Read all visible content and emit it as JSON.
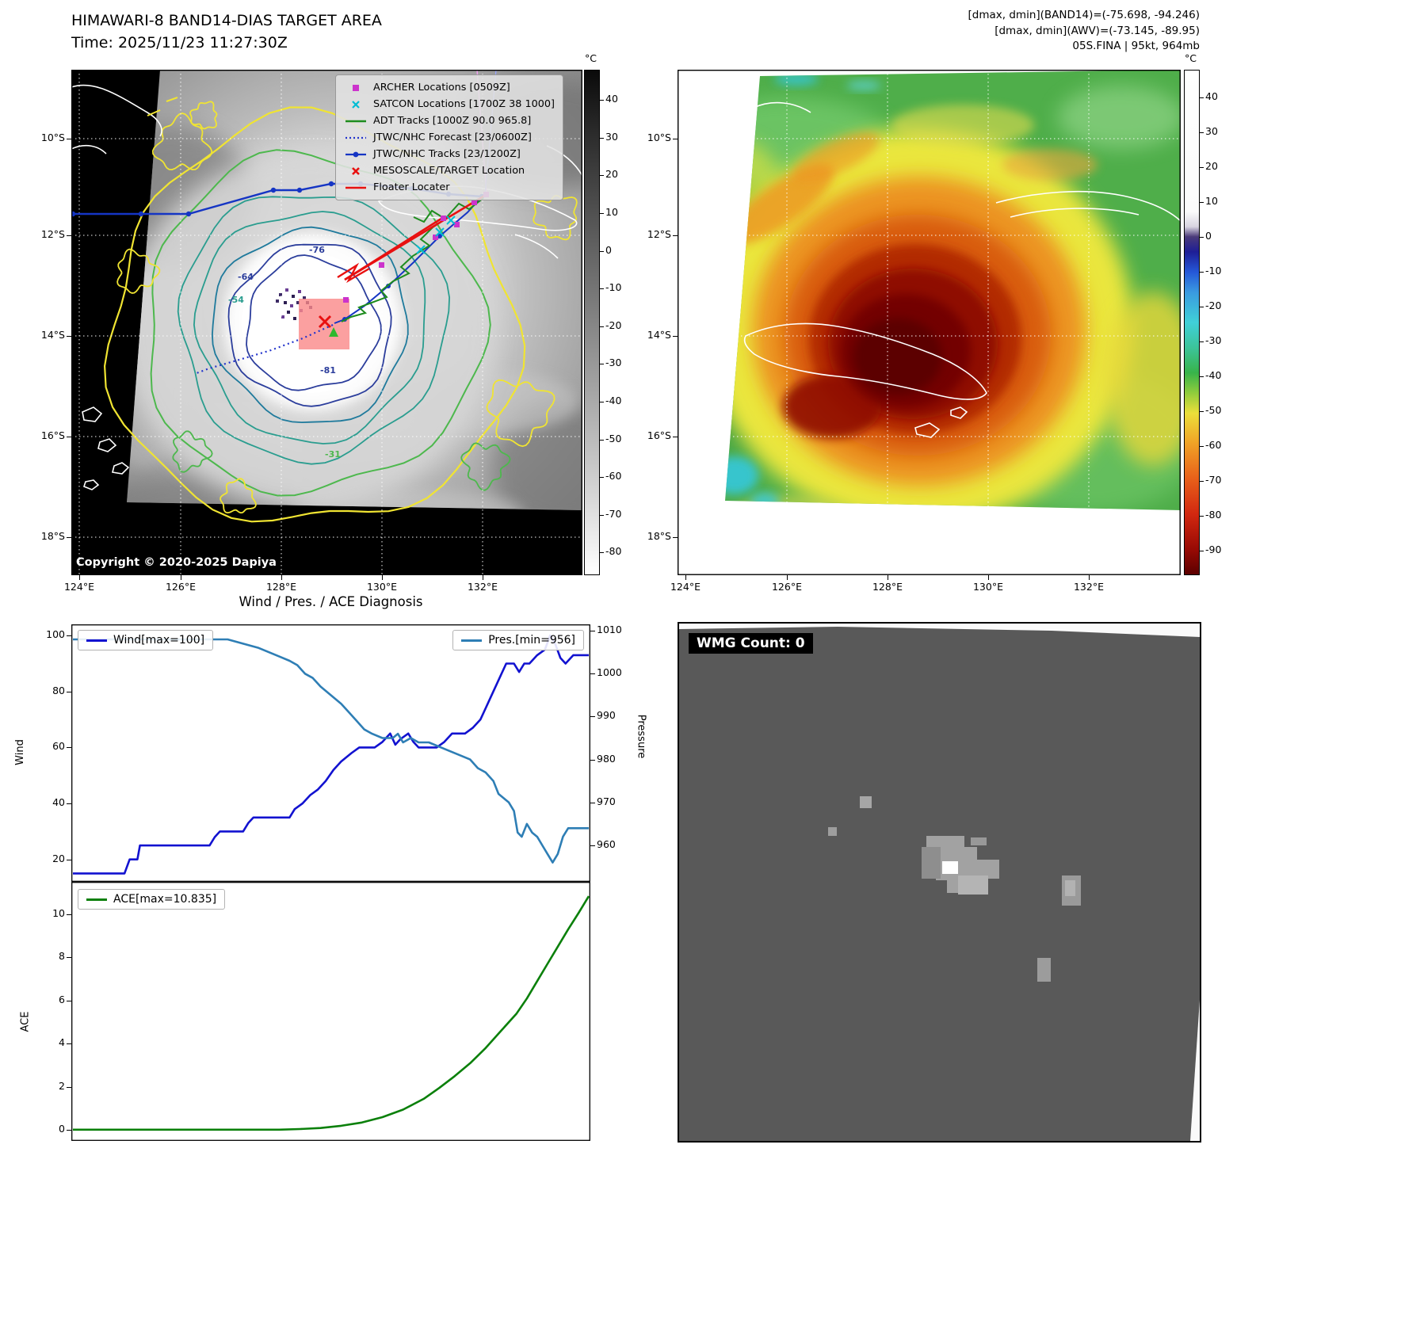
{
  "panel_band14": {
    "title": "HIMAWARI-8 BAND14-DIAS TARGET AREA",
    "subtitle": "Time: 2025/11/23 11:27:30Z",
    "copyright": "Copyright © 2020-2025 Dapiya",
    "legend": {
      "items": [
        {
          "label": "ARCHER Locations [0509Z]",
          "marker": "magenta-square"
        },
        {
          "label": "SATCON Locations [1700Z 38 1000]",
          "marker": "cyan-x"
        },
        {
          "label": "ADT Tracks [1000Z 90.0 965.8]",
          "marker": "green-line"
        },
        {
          "label": "JTWC/NHC Forecast [23/0600Z]",
          "marker": "blue-dotted"
        },
        {
          "label": "JTWC/NHC Tracks [23/1200Z]",
          "marker": "blue-line-dot"
        },
        {
          "label": "MESOSCALE/TARGET Location",
          "marker": "red-x"
        },
        {
          "label": "Floater Locater",
          "marker": "red-line"
        }
      ]
    },
    "colorbar": {
      "unit": "°C",
      "ticks": [
        40,
        30,
        20,
        10,
        0,
        -10,
        -20,
        -30,
        -40,
        -50,
        -60,
        -70,
        -80
      ]
    },
    "lat_labels": [
      "10°S",
      "12°S",
      "14°S",
      "16°S",
      "18°S"
    ],
    "lon_labels": [
      "124°E",
      "126°E",
      "128°E",
      "130°E",
      "132°E"
    ],
    "contour_labels": [
      "-76",
      "-64",
      "-54",
      "-81",
      "-31"
    ]
  },
  "panel_awv": {
    "header_lines": [
      "[dmax, dmin](BAND14)=(-75.698, -94.246)",
      "[dmax, dmin](AWV)=(-73.145, -89.95)",
      "05S.FINA | 95kt, 964mb"
    ],
    "colorbar": {
      "unit": "°C",
      "ticks": [
        40,
        30,
        20,
        10,
        0,
        -10,
        -20,
        -30,
        -40,
        -50,
        -60,
        -70,
        -80,
        -90
      ]
    },
    "lat_labels": [
      "10°S",
      "12°S",
      "14°S",
      "16°S",
      "18°S"
    ],
    "lon_labels": [
      "124°E",
      "126°E",
      "128°E",
      "130°E",
      "132°E"
    ]
  },
  "diagnosis": {
    "title": "Wind / Pres. / ACE Diagnosis"
  },
  "wmg": {
    "label": "WMG Count: 0"
  },
  "chart_data": [
    {
      "type": "line",
      "title": "Wind / Pres. / ACE Diagnosis",
      "y_left": {
        "label": "Wind",
        "ticks": [
          20,
          40,
          60,
          80,
          100
        ],
        "range": [
          12,
          104
        ]
      },
      "y_right": {
        "label": "Pressure",
        "ticks": [
          960,
          970,
          980,
          990,
          1000,
          1010
        ],
        "range": [
          951.5,
          1011.5
        ]
      },
      "grid": false,
      "series": [
        {
          "name": "Wind[max=100]",
          "color": "#1212d0",
          "axis": "left",
          "points": [
            [
              0,
              15
            ],
            [
              0.1,
              15
            ],
            [
              0.11,
              20
            ],
            [
              0.125,
              20
            ],
            [
              0.13,
              25
            ],
            [
              0.265,
              25
            ],
            [
              0.275,
              28
            ],
            [
              0.285,
              30
            ],
            [
              0.33,
              30
            ],
            [
              0.34,
              33
            ],
            [
              0.35,
              35
            ],
            [
              0.42,
              35
            ],
            [
              0.43,
              38
            ],
            [
              0.445,
              40
            ],
            [
              0.46,
              43
            ],
            [
              0.475,
              45
            ],
            [
              0.49,
              48
            ],
            [
              0.505,
              52
            ],
            [
              0.52,
              55
            ],
            [
              0.54,
              58
            ],
            [
              0.555,
              60
            ],
            [
              0.585,
              60
            ],
            [
              0.6,
              62
            ],
            [
              0.615,
              65
            ],
            [
              0.625,
              61
            ],
            [
              0.635,
              63
            ],
            [
              0.65,
              65
            ],
            [
              0.66,
              62
            ],
            [
              0.67,
              60
            ],
            [
              0.705,
              60
            ],
            [
              0.72,
              62
            ],
            [
              0.735,
              65
            ],
            [
              0.76,
              65
            ],
            [
              0.775,
              67
            ],
            [
              0.79,
              70
            ],
            [
              0.8,
              74
            ],
            [
              0.81,
              78
            ],
            [
              0.82,
              82
            ],
            [
              0.83,
              86
            ],
            [
              0.84,
              90
            ],
            [
              0.855,
              90
            ],
            [
              0.865,
              87
            ],
            [
              0.875,
              90
            ],
            [
              0.885,
              90
            ],
            [
              0.9,
              93
            ],
            [
              0.915,
              95
            ],
            [
              0.925,
              100
            ],
            [
              0.935,
              97
            ],
            [
              0.945,
              92
            ],
            [
              0.955,
              90
            ],
            [
              0.97,
              93
            ],
            [
              1,
              93
            ]
          ]
        },
        {
          "name": "Pres.[min=956]",
          "color": "#2e7eb5",
          "axis": "right",
          "points": [
            [
              0,
              1008
            ],
            [
              0.3,
              1008
            ],
            [
              0.33,
              1007
            ],
            [
              0.36,
              1006
            ],
            [
              0.38,
              1005
            ],
            [
              0.4,
              1004
            ],
            [
              0.42,
              1003
            ],
            [
              0.435,
              1002
            ],
            [
              0.45,
              1000
            ],
            [
              0.465,
              999
            ],
            [
              0.48,
              997
            ],
            [
              0.5,
              995
            ],
            [
              0.52,
              993
            ],
            [
              0.535,
              991
            ],
            [
              0.55,
              989
            ],
            [
              0.565,
              987
            ],
            [
              0.58,
              986
            ],
            [
              0.6,
              985
            ],
            [
              0.62,
              985
            ],
            [
              0.63,
              986
            ],
            [
              0.64,
              984
            ],
            [
              0.655,
              985
            ],
            [
              0.67,
              984
            ],
            [
              0.69,
              984
            ],
            [
              0.71,
              983
            ],
            [
              0.73,
              982
            ],
            [
              0.75,
              981
            ],
            [
              0.77,
              980
            ],
            [
              0.785,
              978
            ],
            [
              0.8,
              977
            ],
            [
              0.815,
              975
            ],
            [
              0.825,
              972
            ],
            [
              0.835,
              971
            ],
            [
              0.845,
              970
            ],
            [
              0.855,
              968
            ],
            [
              0.862,
              963
            ],
            [
              0.87,
              962
            ],
            [
              0.88,
              965
            ],
            [
              0.89,
              963
            ],
            [
              0.9,
              962
            ],
            [
              0.91,
              960
            ],
            [
              0.92,
              958
            ],
            [
              0.93,
              956
            ],
            [
              0.94,
              958
            ],
            [
              0.95,
              962
            ],
            [
              0.96,
              964
            ],
            [
              0.975,
              964
            ],
            [
              1,
              964
            ]
          ]
        }
      ]
    },
    {
      "type": "line",
      "y_left": {
        "label": "ACE",
        "ticks": [
          0,
          2,
          4,
          6,
          8,
          10
        ],
        "range": [
          -0.5,
          11.5
        ]
      },
      "grid": false,
      "series": [
        {
          "name": "ACE[max=10.835]",
          "color": "#0b800b",
          "axis": "left",
          "points": [
            [
              0,
              0.02
            ],
            [
              0.4,
              0.02
            ],
            [
              0.44,
              0.05
            ],
            [
              0.48,
              0.1
            ],
            [
              0.52,
              0.2
            ],
            [
              0.56,
              0.35
            ],
            [
              0.6,
              0.6
            ],
            [
              0.64,
              0.95
            ],
            [
              0.68,
              1.45
            ],
            [
              0.71,
              1.95
            ],
            [
              0.74,
              2.5
            ],
            [
              0.77,
              3.1
            ],
            [
              0.8,
              3.8
            ],
            [
              0.83,
              4.6
            ],
            [
              0.86,
              5.4
            ],
            [
              0.88,
              6.1
            ],
            [
              0.9,
              6.9
            ],
            [
              0.92,
              7.7
            ],
            [
              0.94,
              8.5
            ],
            [
              0.96,
              9.3
            ],
            [
              0.98,
              10.05
            ],
            [
              1,
              10.835
            ]
          ]
        }
      ]
    }
  ]
}
